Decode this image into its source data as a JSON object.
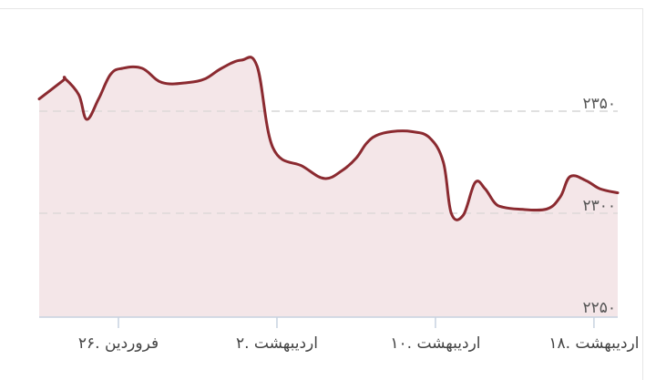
{
  "chart_data": {
    "type": "area",
    "title": "",
    "xlabel": "",
    "ylabel": "",
    "ylim": [
      2250,
      2375
    ],
    "y_ticks": [
      {
        "value": 2350,
        "label": "۲۳۵۰"
      },
      {
        "value": 2300,
        "label": "۲۳۰۰"
      },
      {
        "value": 2250,
        "label": "۲۲۵۰"
      }
    ],
    "x_ticks": [
      {
        "day": 4,
        "label": "۲۶. فروردین"
      },
      {
        "day": 12,
        "label": "۲. اردیبهشت"
      },
      {
        "day": 20,
        "label": "۱۰. اردیبهشت"
      },
      {
        "day": 28,
        "label": "۱۸. اردیبهشت"
      }
    ],
    "x_range": [
      0,
      29.2
    ],
    "grid": true,
    "colors": {
      "line": "#8b2a30",
      "fill": "#f4e6e8",
      "grid": "#d9d9d9",
      "axis": "#c7d2e0"
    },
    "series": [
      {
        "points": [
          [
            0,
            2356
          ],
          [
            1.2,
            2365
          ],
          [
            1.3,
            2366
          ],
          [
            2.0,
            2358
          ],
          [
            2.4,
            2346
          ],
          [
            3.0,
            2356
          ],
          [
            3.6,
            2368
          ],
          [
            4.2,
            2371
          ],
          [
            5.2,
            2371
          ],
          [
            6.2,
            2364
          ],
          [
            7.5,
            2364
          ],
          [
            8.4,
            2366
          ],
          [
            9.2,
            2371
          ],
          [
            10.2,
            2375
          ],
          [
            11.0,
            2372
          ],
          [
            11.8,
            2332
          ],
          [
            13.3,
            2323
          ],
          [
            14.4,
            2317
          ],
          [
            15.3,
            2321
          ],
          [
            16.0,
            2327
          ],
          [
            16.5,
            2334
          ],
          [
            17.0,
            2338
          ],
          [
            17.8,
            2340
          ],
          [
            18.8,
            2340
          ],
          [
            19.7,
            2337
          ],
          [
            20.4,
            2325
          ],
          [
            20.8,
            2300
          ],
          [
            21.4,
            2299
          ],
          [
            22.0,
            2315
          ],
          [
            22.5,
            2312
          ],
          [
            23.0,
            2305
          ],
          [
            23.4,
            2303
          ],
          [
            24.2,
            2302
          ],
          [
            25.6,
            2302
          ],
          [
            26.3,
            2308
          ],
          [
            26.8,
            2318
          ],
          [
            27.6,
            2316
          ],
          [
            28.3,
            2312
          ],
          [
            29.2,
            2310
          ]
        ]
      }
    ]
  }
}
